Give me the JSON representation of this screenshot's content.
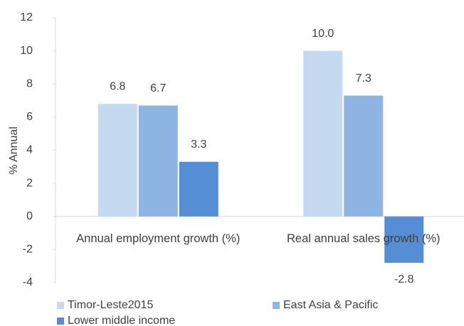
{
  "chart_data": {
    "type": "bar",
    "y_label": "% Annual",
    "categories": [
      "Annual employment growth (%)",
      "Real annual sales growth (%)"
    ],
    "series": [
      {
        "name": "Timor-Leste2015",
        "color": "#c5d9f1",
        "values": [
          6.8,
          10.0
        ],
        "value_labels": [
          "6.8",
          "10.0"
        ]
      },
      {
        "name": "East Asia & Pacific",
        "color": "#8db4e2",
        "values": [
          6.7,
          7.3
        ],
        "value_labels": [
          "6.7",
          "7.3"
        ]
      },
      {
        "name": "Lower middle income",
        "color": "#558ed5",
        "values": [
          3.3,
          -2.8
        ],
        "value_labels": [
          "3.3",
          "-2.8"
        ]
      }
    ],
    "ylim": [
      -4,
      12
    ],
    "yticks": [
      -4,
      -2,
      0,
      2,
      4,
      6,
      8,
      10,
      12
    ],
    "grid": false,
    "legend": "bottom"
  }
}
